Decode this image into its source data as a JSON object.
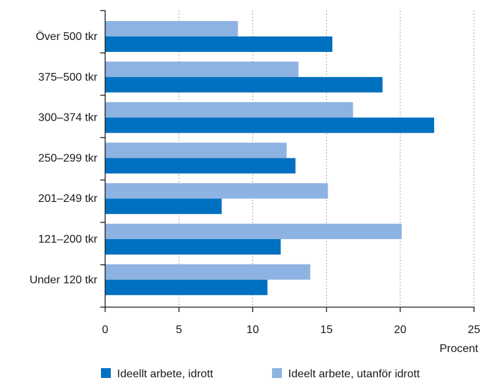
{
  "chart_data": {
    "type": "bar",
    "orientation": "horizontal",
    "categories": [
      "Över 500 tkr",
      "375–500 tkr",
      "300–374 tkr",
      "250–299 tkr",
      "201–249 tkr",
      "121–200 tkr",
      "Under 120 tkr"
    ],
    "series": [
      {
        "name": "Ideelt arbete, utanför idrott",
        "color": "#8db3e2",
        "values": [
          9.0,
          13.1,
          16.8,
          12.3,
          15.1,
          20.1,
          13.9
        ]
      },
      {
        "name": "Ideellt arbete, idrott",
        "color": "#0070c0",
        "values": [
          15.4,
          18.8,
          22.3,
          12.9,
          7.9,
          11.9,
          11.0
        ]
      }
    ],
    "legend_order": [
      1,
      0
    ],
    "xlabel": "Procent",
    "xlim": [
      0,
      25
    ],
    "xticks": [
      0,
      5,
      10,
      15,
      20,
      25
    ],
    "grid": "vertical-dotted",
    "legend_position": "bottom"
  }
}
